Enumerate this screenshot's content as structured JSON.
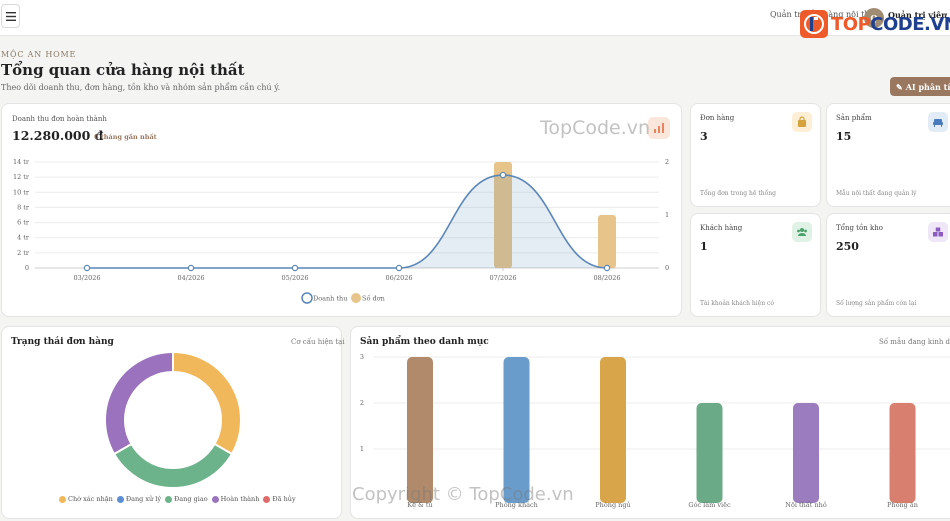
{
  "topbar": {
    "role": "Quản trị cửa hàng nội thất",
    "avatar_initial": "Q",
    "user": "Quản trị viên",
    "logo_text_a": "TOP",
    "logo_text_b": "CODE.VN"
  },
  "header": {
    "kicker": "MỘC AN HOME",
    "title": "Tổng quan cửa hàng nội thất",
    "subtitle": "Theo dõi doanh thu, đơn hàng, tồn kho và nhóm sản phẩm cần chú ý.",
    "ai_button": "AI phân tích"
  },
  "revenue": {
    "label": "Doanh thu đơn hoàn thành",
    "value": "12.280.000 đ",
    "hint": "6 tháng gần nhất"
  },
  "stats": [
    {
      "label": "Đơn hàng",
      "value": "3",
      "foot": "Tổng đơn trong hệ thống",
      "icon": "bag-icon",
      "bg": "#fcefd6",
      "fg": "#d6a23d"
    },
    {
      "label": "Sản phẩm",
      "value": "15",
      "foot": "Mẫu nội thất đang quản lý",
      "icon": "sofa-icon",
      "bg": "#e2ecf7",
      "fg": "#4a7bbf"
    },
    {
      "label": "Khách hàng",
      "value": "1",
      "foot": "Tài khoản khách hiện có",
      "icon": "users-icon",
      "bg": "#e0f2e6",
      "fg": "#4aa06a"
    },
    {
      "label": "Tổng tồn kho",
      "value": "250",
      "foot": "Số lượng sản phẩm còn lại",
      "icon": "boxes-icon",
      "bg": "#efe6f7",
      "fg": "#8a5cbf"
    }
  ],
  "orders": {
    "title": "Trạng thái đơn hàng",
    "hint": "Cơ cấu hiện tại"
  },
  "categories": {
    "title": "Sản phẩm theo danh mục",
    "hint": "Số mẫu đang kinh doanh"
  },
  "watermarks": {
    "mid": "TopCode.vn",
    "bottom": "Copyright © TopCode.vn"
  },
  "chart_data": [
    {
      "type": "line",
      "x": [
        "03/2026",
        "04/2026",
        "05/2026",
        "06/2026",
        "07/2026",
        "08/2026"
      ],
      "series": [
        {
          "name": "Doanh thu",
          "type": "area",
          "axis": "left",
          "values": [
            0,
            0,
            0,
            0,
            12.28,
            0
          ],
          "color": "#5a86b8"
        },
        {
          "name": "Số đơn",
          "type": "bar",
          "axis": "right",
          "values": [
            0,
            0,
            0,
            0,
            2,
            1
          ],
          "color": "#e6c48a"
        }
      ],
      "y_left": {
        "ticks": [
          "0",
          "2 tr",
          "4 tr",
          "6 tr",
          "8 tr",
          "10 tr",
          "12 tr",
          "14 tr"
        ],
        "range": [
          0,
          14
        ]
      },
      "y_right": {
        "ticks": [
          "0",
          "1",
          "2"
        ],
        "range": [
          0,
          2
        ]
      },
      "grid": true,
      "legend": "bottom"
    },
    {
      "type": "pie",
      "categories": [
        "Chờ xác nhận",
        "Đang xử lý",
        "Đang giao",
        "Hoàn thành",
        "Đã hủy"
      ],
      "values": [
        1,
        0,
        1,
        1,
        0
      ],
      "colors": [
        "#f0b85a",
        "#5b8fd1",
        "#6cb28a",
        "#9a72bd",
        "#e06a6a"
      ],
      "legend": "bottom"
    },
    {
      "type": "bar",
      "categories": [
        "Kệ & tủ",
        "Phòng khách",
        "Phòng ngủ",
        "Góc làm việc",
        "Nội thất nhỏ",
        "Phòng ăn"
      ],
      "values": [
        3,
        3,
        3,
        2,
        2,
        2
      ],
      "colors": [
        "#b08a6a",
        "#6a9ccb",
        "#d8a54a",
        "#6aaa86",
        "#9b7cbf",
        "#d97f70"
      ],
      "y_ticks": [
        "1",
        "2",
        "3"
      ],
      "ylim": [
        0,
        3
      ],
      "grid": true
    }
  ]
}
